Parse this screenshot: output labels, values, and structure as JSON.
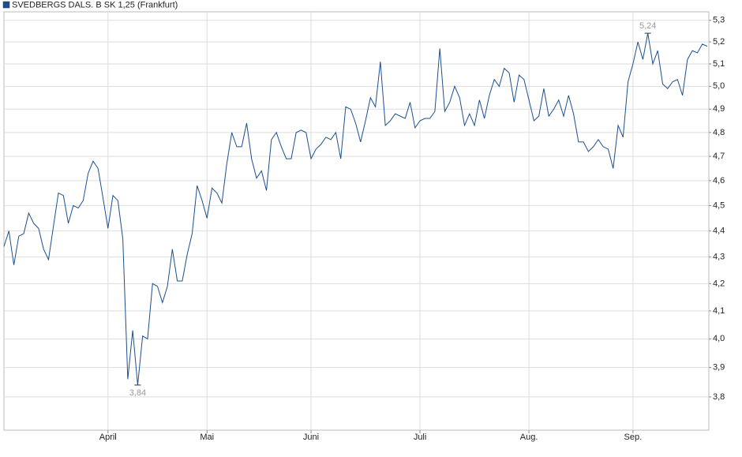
{
  "chart_data": {
    "type": "line",
    "series": [
      {
        "name": "SVEDBERGS DALS. B SK 1,25 (Frankfurt)",
        "color": "#1c4f8f",
        "values": [
          4.34,
          4.4,
          4.27,
          4.38,
          4.39,
          4.47,
          4.43,
          4.41,
          4.33,
          4.29,
          4.42,
          4.55,
          4.54,
          4.43,
          4.5,
          4.49,
          4.52,
          4.63,
          4.68,
          4.65,
          4.53,
          4.41,
          4.54,
          4.52,
          4.37,
          3.86,
          4.03,
          3.84,
          4.01,
          4.0,
          4.2,
          4.19,
          4.13,
          4.19,
          4.33,
          4.21,
          4.21,
          4.31,
          4.39,
          4.58,
          4.52,
          4.45,
          4.57,
          4.55,
          4.51,
          4.67,
          4.8,
          4.74,
          4.74,
          4.84,
          4.69,
          4.61,
          4.64,
          4.56,
          4.77,
          4.8,
          4.74,
          4.69,
          4.69,
          4.8,
          4.81,
          4.8,
          4.69,
          4.73,
          4.75,
          4.78,
          4.77,
          4.8,
          4.69,
          4.91,
          4.9,
          4.84,
          4.76,
          4.85,
          4.95,
          4.91,
          5.11,
          4.83,
          4.85,
          4.88,
          4.87,
          4.86,
          4.93,
          4.82,
          4.85,
          4.86,
          4.86,
          4.89,
          5.17,
          4.89,
          4.93,
          5.0,
          4.95,
          4.83,
          4.88,
          4.83,
          4.94,
          4.86,
          4.96,
          5.03,
          5.0,
          5.08,
          5.06,
          4.93,
          5.05,
          5.03,
          4.94,
          4.85,
          4.87,
          4.99,
          4.87,
          4.9,
          4.94,
          4.87,
          4.96,
          4.88,
          4.76,
          4.76,
          4.72,
          4.74,
          4.77,
          4.74,
          4.73,
          4.65,
          4.83,
          4.78,
          5.02,
          5.1,
          5.2,
          5.12,
          5.24,
          5.1,
          5.16,
          5.01,
          4.99,
          5.02,
          5.03,
          4.96,
          5.12,
          5.16,
          5.15,
          5.19,
          5.18
        ],
        "value_labels": [
          null,
          null,
          null,
          null,
          null,
          null,
          null,
          null,
          null,
          null,
          null,
          null,
          null,
          null,
          null,
          null,
          null,
          null,
          null,
          null,
          null,
          null,
          null,
          null,
          null,
          null,
          null,
          "3,84",
          null,
          null,
          null,
          null,
          null,
          null,
          null,
          null,
          null,
          null,
          null,
          null,
          null,
          null,
          null,
          null,
          null,
          null,
          null,
          null,
          null,
          null,
          null,
          null,
          null,
          null,
          null,
          null,
          null,
          null,
          null,
          null,
          null,
          null,
          null,
          null,
          null,
          null,
          null,
          null,
          null,
          null,
          null,
          null,
          null,
          null,
          null,
          null,
          null,
          null,
          null,
          null,
          null,
          null,
          null,
          null,
          null,
          null,
          null,
          null,
          null,
          null,
          null,
          null,
          null,
          null,
          null,
          null,
          null,
          null,
          null,
          null,
          null,
          null,
          null,
          null,
          null,
          null,
          null,
          null,
          null,
          null,
          null,
          null,
          null,
          null,
          null,
          null,
          null,
          null,
          null,
          null,
          null,
          null,
          null,
          null,
          null,
          null,
          null,
          null,
          null,
          null,
          "5,24",
          null,
          null,
          null,
          null,
          null,
          null,
          null,
          null,
          null,
          null,
          null,
          null
        ]
      }
    ],
    "categories": [
      null,
      null,
      null,
      null,
      null,
      null,
      null,
      null,
      null,
      null,
      null,
      null,
      null,
      null,
      null,
      null,
      null,
      null,
      null,
      null,
      null,
      "April",
      null,
      null,
      null,
      null,
      null,
      null,
      null,
      null,
      null,
      null,
      null,
      null,
      null,
      null,
      null,
      null,
      null,
      null,
      null,
      "Mai",
      null,
      null,
      null,
      null,
      null,
      null,
      null,
      null,
      null,
      null,
      null,
      null,
      null,
      null,
      null,
      null,
      null,
      null,
      null,
      null,
      "Juni",
      null,
      null,
      null,
      null,
      null,
      null,
      null,
      null,
      null,
      null,
      null,
      null,
      null,
      null,
      null,
      null,
      null,
      null,
      null,
      null,
      null,
      "Juli",
      null,
      null,
      null,
      null,
      null,
      null,
      null,
      null,
      null,
      null,
      null,
      null,
      null,
      null,
      null,
      null,
      null,
      null,
      null,
      null,
      null,
      "Aug.",
      null,
      null,
      null,
      null,
      null,
      null,
      null,
      null,
      null,
      null,
      null,
      null,
      null,
      null,
      null,
      null,
      null,
      null,
      null,
      null,
      "Sep.",
      null,
      null,
      null,
      null,
      null,
      null,
      null,
      null,
      null,
      null,
      null,
      null,
      null,
      null,
      null
    ],
    "ylim": [
      3.69,
      5.34
    ],
    "log": true,
    "grid": true,
    "yticks": [
      {
        "value": 5.3,
        "label": "5,3"
      },
      {
        "value": 5.2,
        "label": "5,2"
      },
      {
        "value": 5.1,
        "label": "5,1"
      },
      {
        "value": 5.0,
        "label": "5,0"
      },
      {
        "value": 4.9,
        "label": "4,9"
      },
      {
        "value": 4.8,
        "label": "4,8"
      },
      {
        "value": 4.7,
        "label": "4,7"
      },
      {
        "value": 4.6,
        "label": "4,6"
      },
      {
        "value": 4.5,
        "label": "4,5"
      },
      {
        "value": 4.4,
        "label": "4,4"
      },
      {
        "value": 4.3,
        "label": "4,3"
      },
      {
        "value": 4.2,
        "label": "4,2"
      },
      {
        "value": 4.1,
        "label": "4,1"
      },
      {
        "value": 4.0,
        "label": "4,0"
      },
      {
        "value": 3.9,
        "label": "3,9"
      },
      {
        "value": 3.8,
        "label": "3,8"
      }
    ],
    "legend": "top-left"
  }
}
